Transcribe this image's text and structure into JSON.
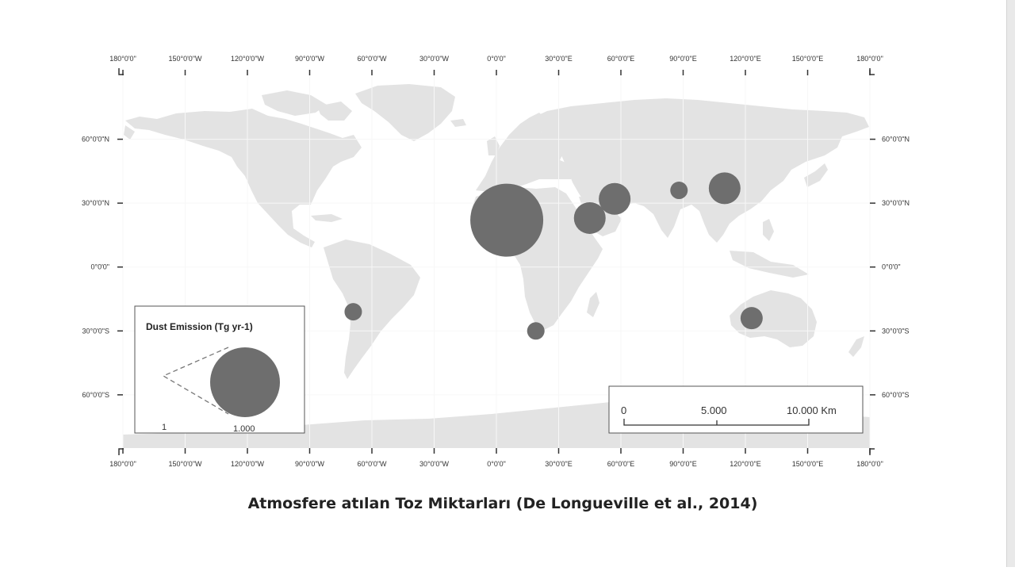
{
  "caption": "Atmosfere atılan Toz Miktarları (De Longueville et al., 2014)",
  "colors": {
    "land": "#e3e3e3",
    "grid": "#f7f7f7",
    "circle": "#6e6e6e",
    "tick": "#333333",
    "frame_line": "#555555",
    "page_edge": "#e9e9e9"
  },
  "map": {
    "projection": "equirectangular",
    "lon_range": [
      -180,
      180
    ],
    "lat_range": [
      -85,
      90
    ],
    "lon_labels": [
      {
        "lon": -180,
        "label": "180°0'0\""
      },
      {
        "lon": -150,
        "label": "150°0'0\"W"
      },
      {
        "lon": -120,
        "label": "120°0'0\"W"
      },
      {
        "lon": -90,
        "label": "90°0'0\"W"
      },
      {
        "lon": -60,
        "label": "60°0'0\"W"
      },
      {
        "lon": -30,
        "label": "30°0'0\"W"
      },
      {
        "lon": 0,
        "label": "0°0'0\""
      },
      {
        "lon": 30,
        "label": "30°0'0\"E"
      },
      {
        "lon": 60,
        "label": "60°0'0\"E"
      },
      {
        "lon": 90,
        "label": "90°0'0\"E"
      },
      {
        "lon": 120,
        "label": "120°0'0\"E"
      },
      {
        "lon": 150,
        "label": "150°0'0\"E"
      },
      {
        "lon": 180,
        "label": "180°0'0\""
      }
    ],
    "lat_labels": [
      {
        "lat": 60,
        "label": "60°0'0\"N"
      },
      {
        "lat": 30,
        "label": "30°0'0\"N"
      },
      {
        "lat": 0,
        "label": "0°0'0\""
      },
      {
        "lat": -30,
        "label": "30°0'0\"S"
      },
      {
        "lat": -60,
        "label": "60°0'0\"S"
      }
    ]
  },
  "dust_sources": [
    {
      "lon": 5,
      "lat": 22,
      "size": "very large"
    },
    {
      "lon": 45,
      "lat": 23,
      "size": "medium"
    },
    {
      "lon": 57,
      "lat": 32,
      "size": "medium"
    },
    {
      "lon": 88,
      "lat": 36,
      "size": "small"
    },
    {
      "lon": 110,
      "lat": 37,
      "size": "medium"
    },
    {
      "lon": -69,
      "lat": -21,
      "size": "small"
    },
    {
      "lon": 19,
      "lat": -30,
      "size": "small"
    },
    {
      "lon": 123,
      "lat": -24,
      "size": "small-medium"
    }
  ],
  "legend": {
    "title": "Dust Emission (Tg yr-1)",
    "min_label": "1",
    "max_label": "1.000",
    "min_value": 1,
    "max_value": 1000
  },
  "scalebar": {
    "labels": [
      "0",
      "5.000",
      "10.000 Km"
    ],
    "values_km": [
      0,
      5000,
      10000
    ]
  }
}
